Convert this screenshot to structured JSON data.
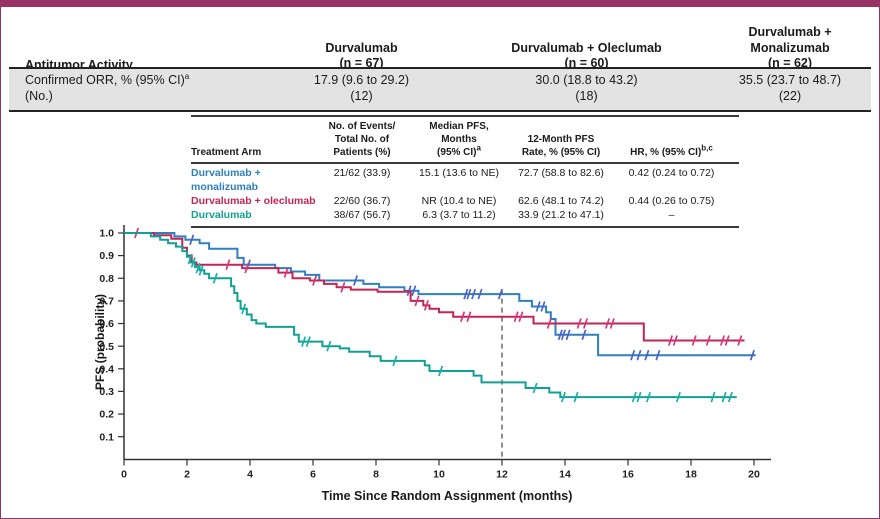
{
  "colors": {
    "accent": "#993366",
    "gray_band": "#e3e3e3",
    "monalizumab": "#2f7fc1",
    "oleclumab": "#c32553",
    "durvalumab": "#13a094"
  },
  "orr_table": {
    "title": "Antitumor Activity",
    "row_label": "Confirmed ORR, % (95% CI)",
    "row_label_sup": "a",
    "row_label2": "(No.)",
    "columns": [
      {
        "drug": "Durvalumab",
        "n": "(n = 67)",
        "orr": "17.9 (9.6 to 29.2)",
        "no": "(12)"
      },
      {
        "drug": "Durvalumab + Oleclumab",
        "n": "(n = 60)",
        "orr": "30.0 (18.8 to 43.2)",
        "no": "(18)"
      },
      {
        "drug": "Durvalumab + Monalizumab",
        "n": "(n = 62)",
        "orr": "35.5 (23.7 to 48.7)",
        "no": "(22)"
      }
    ]
  },
  "pfs_table": {
    "header": {
      "arm": "Treatment Arm",
      "events_l1": "No. of Events/",
      "events_l2": "Total No. of",
      "events_l3": "Patients (%)",
      "median_l1": "Median PFS,",
      "median_l2": "Months",
      "median_l3": "(95% CI)",
      "median_sup": "a",
      "rate_l1": "12-Month PFS",
      "rate_l2": "Rate, % (95% CI)",
      "hr": "HR, % (95% CI)",
      "hr_sup": "b,c"
    },
    "rows": [
      {
        "arm": "Durvalumab + monalizumab",
        "color": "#2f7fc1",
        "events": "21/62 (33.9)",
        "median": "15.1 (13.6 to NE)",
        "rate": "72.7 (58.8 to 82.6)",
        "hr": "0.42 (0.24 to 0.72)"
      },
      {
        "arm": "Durvalumab + oleclumab",
        "color": "#c32553",
        "events": "22/60 (36.7)",
        "median": "NR (10.4 to NE)",
        "rate": "62.6 (48.1 to 74.2)",
        "hr": "0.44 (0.26 to 0.75)"
      },
      {
        "arm": "Durvalumab",
        "color": "#13a094",
        "events": "38/67 (56.7)",
        "median": "6.3 (3.7 to 11.2)",
        "rate": "33.9 (21.2 to 47.1)",
        "hr": "–"
      }
    ]
  },
  "chart_data": {
    "type": "line",
    "subtype": "kaplan-meier-step",
    "xlabel": "Time Since Random Assignment (months)",
    "ylabel": "PFS (probability)",
    "xlim": [
      0,
      20.5
    ],
    "ylim": [
      0,
      1.05
    ],
    "xticks": [
      0,
      2,
      4,
      6,
      8,
      10,
      12,
      14,
      16,
      18,
      20
    ],
    "yticks": [
      0.1,
      0.2,
      0.3,
      0.4,
      0.5,
      0.6,
      0.7,
      0.8,
      0.9,
      1.0
    ],
    "grid": false,
    "legend_position": "table-above",
    "reference_line": {
      "x": 12,
      "style": "dashed",
      "top": 0.75
    },
    "series": [
      {
        "name": "Durvalumab + monalizumab",
        "color": "#2f7fc1",
        "censor_color": "#4a63c8",
        "steps": [
          [
            0,
            1.0
          ],
          [
            1.6,
            0.985
          ],
          [
            1.95,
            0.97
          ],
          [
            2.4,
            0.955
          ],
          [
            2.7,
            0.93
          ],
          [
            3.6,
            0.89
          ],
          [
            3.8,
            0.86
          ],
          [
            4.8,
            0.845
          ],
          [
            5.3,
            0.83
          ],
          [
            5.75,
            0.815
          ],
          [
            6.2,
            0.79
          ],
          [
            7.6,
            0.775
          ],
          [
            8.1,
            0.76
          ],
          [
            8.9,
            0.745
          ],
          [
            9.35,
            0.73
          ],
          [
            12.55,
            0.7
          ],
          [
            12.95,
            0.675
          ],
          [
            13.4,
            0.65
          ],
          [
            13.55,
            0.62
          ],
          [
            13.7,
            0.55
          ],
          [
            15.05,
            0.46
          ]
        ],
        "end": 20.05,
        "censors": [
          [
            2.15,
            0.97
          ],
          [
            3.95,
            0.86
          ],
          [
            7.35,
            0.79
          ],
          [
            9.05,
            0.745
          ],
          [
            9.2,
            0.745
          ],
          [
            10.85,
            0.73
          ],
          [
            10.95,
            0.73
          ],
          [
            11.1,
            0.73
          ],
          [
            11.3,
            0.73
          ],
          [
            11.95,
            0.73
          ],
          [
            13.15,
            0.675
          ],
          [
            13.3,
            0.675
          ],
          [
            13.85,
            0.55
          ],
          [
            13.95,
            0.55
          ],
          [
            14.1,
            0.55
          ],
          [
            14.6,
            0.55
          ],
          [
            16.15,
            0.46
          ],
          [
            16.35,
            0.46
          ],
          [
            16.6,
            0.46
          ],
          [
            16.95,
            0.46
          ],
          [
            19.95,
            0.46
          ]
        ]
      },
      {
        "name": "Durvalumab + oleclumab",
        "color": "#c32553",
        "censor_color": "#d6367d",
        "steps": [
          [
            0,
            1.0
          ],
          [
            0.95,
            0.99
          ],
          [
            1.5,
            0.975
          ],
          [
            1.85,
            0.935
          ],
          [
            2.0,
            0.9
          ],
          [
            2.15,
            0.87
          ],
          [
            2.3,
            0.86
          ],
          [
            3.75,
            0.845
          ],
          [
            4.9,
            0.825
          ],
          [
            5.35,
            0.8
          ],
          [
            5.9,
            0.79
          ],
          [
            6.35,
            0.775
          ],
          [
            6.75,
            0.76
          ],
          [
            7.2,
            0.75
          ],
          [
            8.05,
            0.74
          ],
          [
            9.1,
            0.7
          ],
          [
            9.5,
            0.68
          ],
          [
            9.7,
            0.665
          ],
          [
            10.0,
            0.65
          ],
          [
            10.45,
            0.63
          ],
          [
            13.0,
            0.6
          ],
          [
            16.5,
            0.525
          ]
        ],
        "end": 19.7,
        "censors": [
          [
            0.4,
            1.0
          ],
          [
            3.3,
            0.86
          ],
          [
            3.9,
            0.845
          ],
          [
            5.15,
            0.825
          ],
          [
            6.05,
            0.79
          ],
          [
            6.95,
            0.76
          ],
          [
            9.3,
            0.7
          ],
          [
            9.6,
            0.68
          ],
          [
            10.75,
            0.63
          ],
          [
            10.95,
            0.63
          ],
          [
            12.45,
            0.63
          ],
          [
            12.6,
            0.63
          ],
          [
            13.5,
            0.6
          ],
          [
            14.45,
            0.6
          ],
          [
            14.65,
            0.6
          ],
          [
            15.35,
            0.6
          ],
          [
            15.5,
            0.6
          ],
          [
            17.35,
            0.525
          ],
          [
            17.5,
            0.525
          ],
          [
            18.1,
            0.525
          ],
          [
            18.55,
            0.525
          ],
          [
            19.0,
            0.525
          ],
          [
            19.15,
            0.525
          ],
          [
            19.55,
            0.525
          ]
        ]
      },
      {
        "name": "Durvalumab",
        "color": "#13a094",
        "censor_color": "#17b0a3",
        "steps": [
          [
            0,
            1.0
          ],
          [
            0.85,
            0.985
          ],
          [
            1.15,
            0.97
          ],
          [
            1.4,
            0.955
          ],
          [
            1.65,
            0.94
          ],
          [
            1.85,
            0.92
          ],
          [
            2.0,
            0.895
          ],
          [
            2.1,
            0.87
          ],
          [
            2.25,
            0.85
          ],
          [
            2.4,
            0.835
          ],
          [
            2.55,
            0.82
          ],
          [
            2.7,
            0.8
          ],
          [
            3.4,
            0.765
          ],
          [
            3.5,
            0.735
          ],
          [
            3.6,
            0.7
          ],
          [
            3.7,
            0.665
          ],
          [
            3.9,
            0.64
          ],
          [
            4.05,
            0.615
          ],
          [
            4.2,
            0.6
          ],
          [
            4.5,
            0.585
          ],
          [
            5.4,
            0.55
          ],
          [
            5.55,
            0.52
          ],
          [
            6.3,
            0.5
          ],
          [
            6.85,
            0.49
          ],
          [
            7.15,
            0.475
          ],
          [
            7.8,
            0.455
          ],
          [
            8.15,
            0.435
          ],
          [
            9.55,
            0.415
          ],
          [
            9.7,
            0.39
          ],
          [
            11.1,
            0.37
          ],
          [
            11.35,
            0.34
          ],
          [
            12.75,
            0.315
          ],
          [
            13.5,
            0.295
          ],
          [
            13.85,
            0.275
          ]
        ],
        "end": 19.45,
        "censors": [
          [
            2.1,
            0.885
          ],
          [
            2.2,
            0.87
          ],
          [
            2.35,
            0.845
          ],
          [
            2.45,
            0.835
          ],
          [
            2.9,
            0.8
          ],
          [
            3.8,
            0.665
          ],
          [
            5.7,
            0.52
          ],
          [
            5.85,
            0.52
          ],
          [
            6.5,
            0.5
          ],
          [
            8.6,
            0.435
          ],
          [
            10.05,
            0.39
          ],
          [
            13.05,
            0.315
          ],
          [
            13.95,
            0.275
          ],
          [
            14.35,
            0.275
          ],
          [
            16.2,
            0.275
          ],
          [
            16.35,
            0.275
          ],
          [
            16.65,
            0.275
          ],
          [
            17.6,
            0.275
          ],
          [
            18.7,
            0.275
          ],
          [
            19.05,
            0.275
          ],
          [
            19.25,
            0.275
          ]
        ]
      }
    ]
  }
}
